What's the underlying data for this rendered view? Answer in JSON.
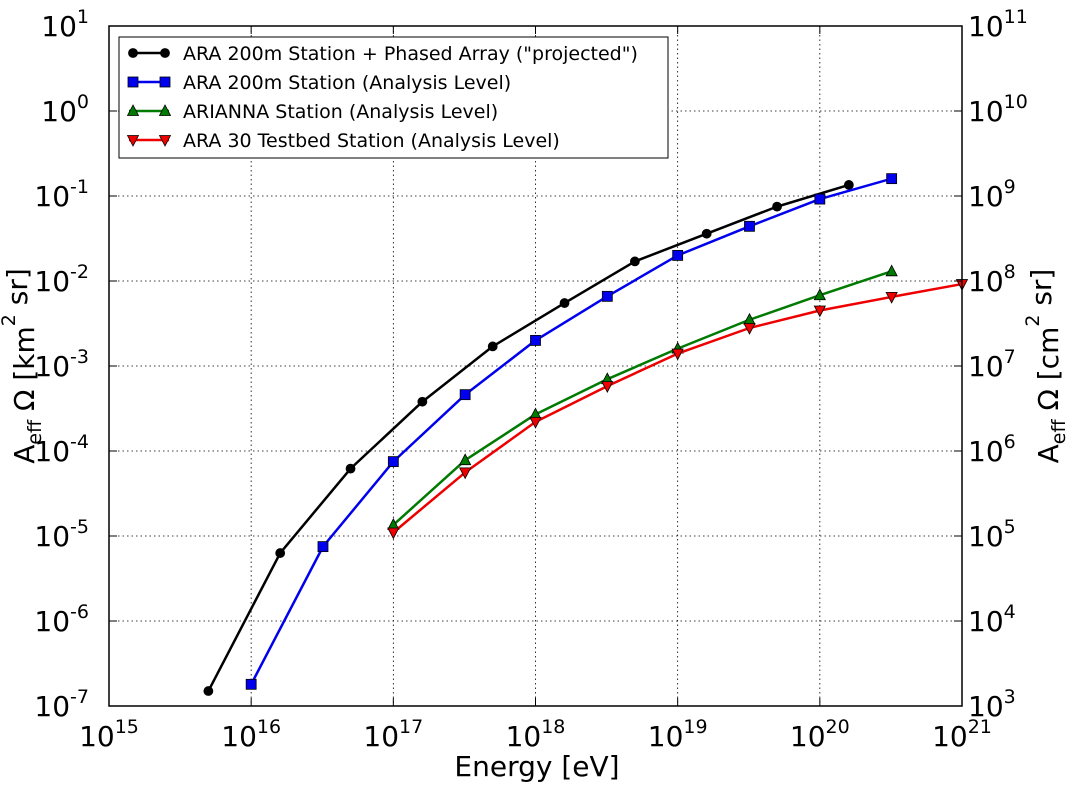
{
  "chart_data": {
    "type": "line",
    "xlabel": "Energy [eV]",
    "ylabel_left": "A_eff Ω [km² sr]",
    "ylabel_right": "A_eff Ω [cm² sr]",
    "x_scale": "log",
    "y_scale": "log",
    "xlim": [
      1000000000000000.0,
      1e+21
    ],
    "ylim_left": [
      1e-07,
      10
    ],
    "ylim_right": [
      1000.0,
      100000000000.0
    ],
    "grid": true,
    "legend_position": "top-left",
    "x_tick_exponents": [
      "15",
      "16",
      "17",
      "18",
      "19",
      "20",
      "21"
    ],
    "y_left_tick_exponents": [
      "-7",
      "-6",
      "-5",
      "-4",
      "-3",
      "-2",
      "-1",
      "0",
      "1"
    ],
    "y_right_tick_exponents": [
      "3",
      "4",
      "5",
      "6",
      "7",
      "8",
      "9",
      "10",
      "11"
    ],
    "tick_base": "10",
    "series": [
      {
        "name": "ARA 200m Station + Phased Array (\"projected\")",
        "color": "#000000",
        "marker": "circle",
        "x": [
          5000000000000000.0,
          1.6e+16,
          5e+16,
          1.6e+17,
          5e+17,
          1.6e+18,
          5e+18,
          1.6e+19,
          5e+19,
          1.6e+20
        ],
        "y": [
          1.5e-07,
          6.3e-06,
          6.2e-05,
          0.00038,
          0.0017,
          0.0055,
          0.017,
          0.036,
          0.075,
          0.135
        ]
      },
      {
        "name": "ARA 200m Station (Analysis Level)",
        "color": "#0000ee",
        "marker": "square",
        "x": [
          1e+16,
          3.2e+16,
          1e+17,
          3.2e+17,
          1e+18,
          3.2e+18,
          1e+19,
          3.2e+19,
          1e+20,
          3.2e+20
        ],
        "y": [
          1.8e-07,
          7.5e-06,
          7.5e-05,
          0.00046,
          0.002,
          0.0066,
          0.02,
          0.044,
          0.092,
          0.16
        ]
      },
      {
        "name": "ARIANNA Station (Analysis Level)",
        "color": "#007a00",
        "marker": "triangle-up",
        "x": [
          1e+17,
          3.2e+17,
          1e+18,
          3.2e+18,
          1e+19,
          3.2e+19,
          1e+20,
          3.2e+20
        ],
        "y": [
          1.35e-05,
          7.8e-05,
          0.00027,
          0.0007,
          0.0016,
          0.0035,
          0.0068,
          0.013
        ]
      },
      {
        "name": "ARA 30 Testbed Station (Analysis Level)",
        "color": "#ee0000",
        "marker": "triangle-down",
        "x": [
          1e+17,
          3.2e+17,
          1e+18,
          3.2e+18,
          1e+19,
          3.2e+19,
          1e+20,
          3.2e+20,
          1e+21
        ],
        "y": [
          1.1e-05,
          5.6e-05,
          0.00022,
          0.00058,
          0.0014,
          0.0028,
          0.0045,
          0.0065,
          0.0092
        ]
      }
    ]
  }
}
